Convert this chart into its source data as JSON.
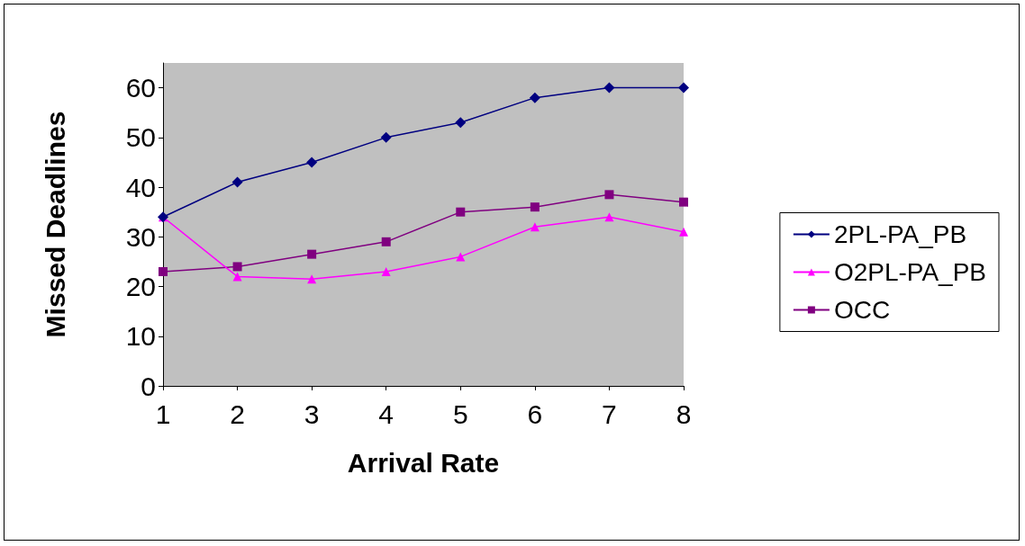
{
  "chart_data": {
    "type": "line",
    "xlabel": "Arrival Rate",
    "ylabel": "Missed Deadlines",
    "categories": [
      "1",
      "2",
      "3",
      "4",
      "5",
      "6",
      "7",
      "8"
    ],
    "series": [
      {
        "name": "2PL-PA_PB",
        "color": "#000080",
        "marker": "diamond",
        "values": [
          34,
          41,
          45,
          50,
          53,
          58,
          60,
          60
        ]
      },
      {
        "name": "O2PL-PA_PB",
        "color": "#ff00ff",
        "marker": "triangle",
        "values": [
          34,
          22,
          21.5,
          23,
          26,
          32,
          34,
          31
        ]
      },
      {
        "name": "OCC",
        "color": "#800080",
        "marker": "square",
        "values": [
          23,
          24,
          26.5,
          29,
          35,
          36,
          38.5,
          37
        ]
      }
    ],
    "ylim": [
      0,
      65
    ],
    "yticks": [
      0,
      10,
      20,
      30,
      40,
      50,
      60
    ],
    "legend": "right",
    "line_style": "solid"
  }
}
